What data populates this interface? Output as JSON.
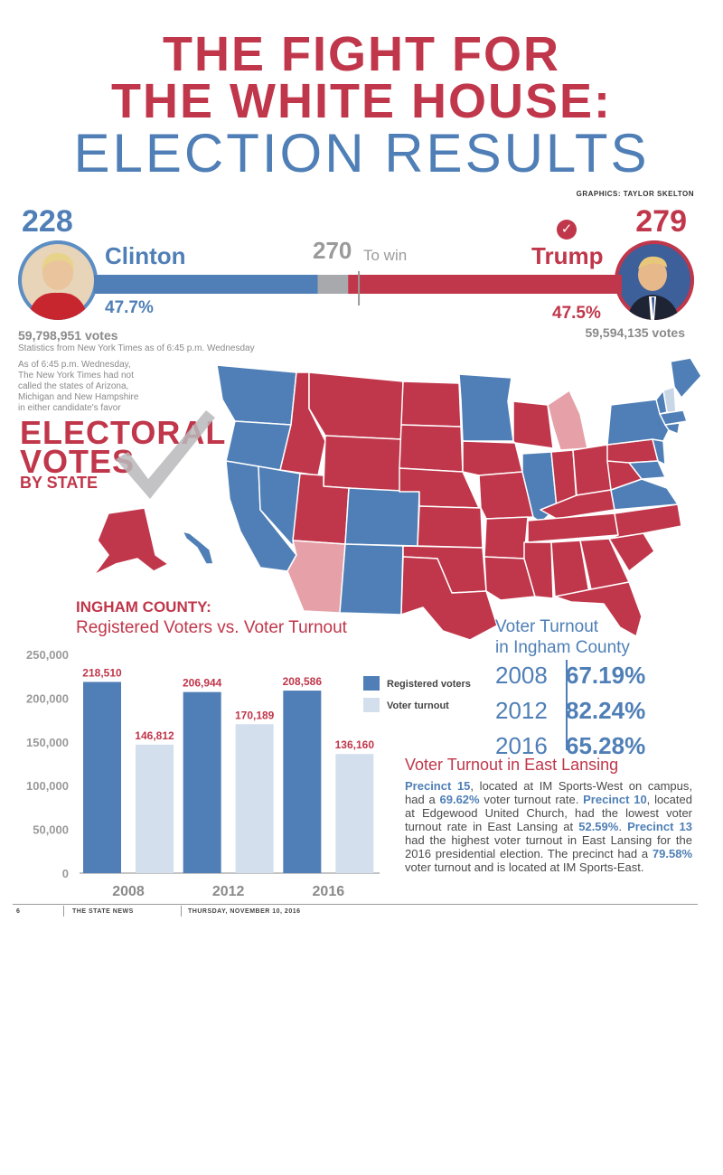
{
  "header": {
    "title_line1": "THE FIGHT FOR",
    "title_line2": "THE WHITE HOUSE:",
    "title_line3": "ELECTION RESULTS",
    "credit": "GRAPHICS: TAYLOR SKELTON"
  },
  "race": {
    "clinton": {
      "electoral": "228",
      "name": "Clinton",
      "pct": "47.7%",
      "votes": "59,798,951 votes"
    },
    "trump": {
      "electoral": "279",
      "name": "Trump",
      "pct": "47.5%",
      "votes": "59,594,135 votes",
      "check": "✓"
    },
    "to_win_number": "270",
    "to_win_label": "To win",
    "electoral_bar": {
      "clinton": 228,
      "trump": 279,
      "total": 538,
      "to_win": 270
    },
    "stats_note": "Statistics from New York Times as of 6:45 p.m. Wednesday",
    "uncalled_note": [
      "As of 6:45 p.m. Wednesday,",
      "The New York Times had not",
      "called the states of Arizona,",
      "Michigan and New Hampshire",
      "in either candidate's favor"
    ]
  },
  "electoral_map": {
    "title_line1": "ELECTORAL",
    "title_line2": "VOTES",
    "title_line3": "BY STATE",
    "colors": {
      "clinton": "#4f7fb6",
      "trump": "#c0364a",
      "uncalled": "#e5a0a8",
      "uncalled_blue": "#c9d6e6"
    }
  },
  "chart_title": {
    "line1": "INGHAM COUNTY:",
    "line2": "Registered Voters vs. Voter Turnout"
  },
  "chart_data": {
    "type": "bar",
    "categories": [
      "2008",
      "2012",
      "2016"
    ],
    "series": [
      {
        "name": "Registered voters",
        "values": [
          218510,
          206944,
          208586
        ],
        "labels": [
          "218,510",
          "206,944",
          "208,586"
        ],
        "color": "#4f7fb6"
      },
      {
        "name": "Voter turnout",
        "values": [
          146812,
          170189,
          136160
        ],
        "labels": [
          "146,812",
          "170,189",
          "136,160"
        ],
        "color": "#d3dfec"
      }
    ],
    "ylim": [
      0,
      250000
    ],
    "yticks": [
      0,
      50000,
      100000,
      150000,
      200000,
      250000
    ],
    "ytick_labels": [
      "0",
      "50,000",
      "100,000",
      "150,000",
      "200,000",
      "250,000"
    ],
    "legend_position": "top-right",
    "grid": false
  },
  "turnout": {
    "title_line1": "Voter Turnout",
    "title_line2": "in Ingham County",
    "rows": [
      {
        "year": "2008",
        "pct": "67.19%"
      },
      {
        "year": "2012",
        "pct": "82.24%"
      },
      {
        "year": "2016",
        "pct": "65.28%"
      }
    ]
  },
  "east_lansing": {
    "title": "Voter Turnout in East Lansing",
    "p1_b": "Precinct 15",
    "p1_t": ", located at IM Sports-West on campus, had a ",
    "p1_v": "69.62%",
    "p1_e": " voter turnout rate. ",
    "p2_b": "Precinct 10",
    "p2_t": ", located at Edgewood United Church, had the lowest voter turnout rate in East Lansing at ",
    "p2_v": "52.59%",
    "p2_e": ". ",
    "p3_b": "Precinct 13",
    "p3_t": " had the highest voter turnout in East Lansing for the 2016 presidential election. The precinct had a ",
    "p3_v": "79.58%",
    "p3_e": " voter turnout and is located at IM Sports-East."
  },
  "footer": {
    "page": "6",
    "paper": "THE STATE NEWS",
    "date": "THURSDAY, NOVEMBER 10, 2016"
  }
}
